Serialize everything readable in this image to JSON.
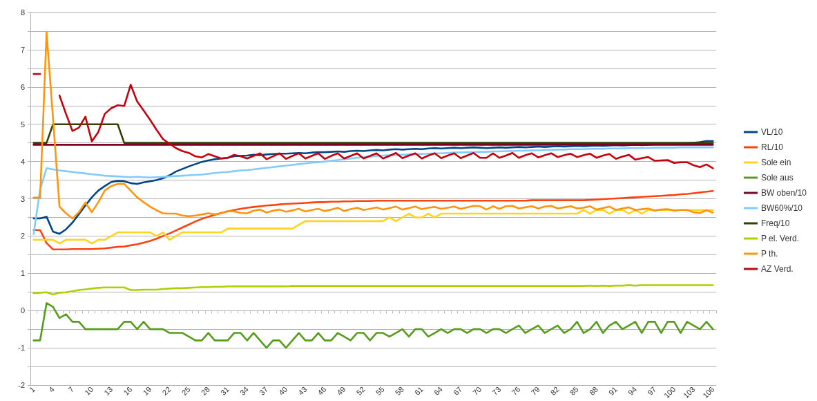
{
  "chart_data": {
    "type": "line",
    "categories": [
      "1",
      null,
      null,
      "4",
      null,
      null,
      "7",
      null,
      null,
      "10",
      null,
      null,
      "13",
      null,
      null,
      "16",
      null,
      null,
      "19",
      null,
      null,
      "22",
      null,
      null,
      "25",
      null,
      null,
      "28",
      null,
      null,
      "31",
      null,
      null,
      "34",
      null,
      null,
      "37",
      null,
      null,
      "40",
      null,
      null,
      "43",
      null,
      null,
      "46",
      null,
      null,
      "49",
      null,
      null,
      "52",
      null,
      null,
      "55",
      null,
      null,
      "58",
      null,
      null,
      "61",
      null,
      null,
      "64",
      null,
      null,
      "67",
      null,
      null,
      "70",
      null,
      null,
      "73",
      null,
      null,
      "76",
      null,
      null,
      "79",
      null,
      null,
      "82",
      null,
      null,
      "85",
      null,
      null,
      "88",
      null,
      null,
      "91",
      null,
      null,
      "94",
      null,
      null,
      "97",
      null,
      null,
      "100",
      null,
      null,
      "103",
      null,
      null,
      "106"
    ],
    "ylim": [
      -2,
      8
    ],
    "yticks": [
      -2,
      {
        "value": -1.5,
        "label": null
      },
      -1,
      {
        "value": -0.5,
        "label": null
      },
      0,
      {
        "value": 0.5,
        "label": null
      },
      1,
      {
        "value": 1.5,
        "label": null
      },
      2,
      {
        "value": 2.5,
        "label": null
      },
      3,
      {
        "value": 3.5,
        "label": null
      },
      4,
      {
        "value": 4.5,
        "label": null
      },
      5,
      {
        "value": 5.5,
        "label": null
      },
      6,
      {
        "value": 6.5,
        "label": null
      },
      7,
      {
        "value": 7.5,
        "label": null
      },
      8
    ],
    "grid": "y",
    "legend": "right",
    "marker": "none",
    "line_style": "solid",
    "series": [
      {
        "name": "VL/10",
        "color": "#004586",
        "values": [
          2.47,
          2.47,
          2.52,
          2.12,
          2.06,
          2.18,
          2.36,
          2.59,
          2.82,
          3.04,
          3.22,
          3.34,
          3.45,
          3.48,
          3.47,
          3.42,
          3.4,
          3.44,
          3.47,
          3.5,
          3.55,
          3.63,
          3.73,
          3.8,
          3.87,
          3.93,
          3.99,
          4.03,
          4.06,
          4.08,
          4.1,
          4.14,
          4.15,
          4.16,
          4.18,
          4.17,
          4.19,
          4.2,
          4.21,
          4.21,
          4.22,
          4.23,
          4.22,
          4.24,
          4.25,
          4.25,
          4.26,
          4.27,
          4.26,
          4.28,
          4.29,
          4.28,
          4.3,
          4.31,
          4.3,
          4.32,
          4.33,
          4.32,
          4.33,
          4.34,
          4.33,
          4.35,
          4.36,
          4.35,
          4.36,
          4.37,
          4.36,
          4.37,
          4.38,
          4.37,
          4.36,
          4.37,
          4.38,
          4.37,
          4.38,
          4.39,
          4.38,
          4.39,
          4.4,
          4.39,
          4.4,
          4.41,
          4.4,
          4.41,
          4.42,
          4.41,
          4.42,
          4.43,
          4.42,
          4.43,
          4.44,
          4.43,
          4.44,
          4.45,
          4.44,
          4.45,
          4.46,
          4.46,
          4.47,
          4.47,
          4.48,
          4.49,
          4.5,
          4.52,
          4.55,
          4.55
        ]
      },
      {
        "name": "RL/10",
        "color": "#ff420e",
        "values": [
          2.16,
          2.16,
          1.81,
          1.64,
          1.64,
          1.64,
          1.65,
          1.65,
          1.65,
          1.65,
          1.66,
          1.67,
          1.69,
          1.71,
          1.72,
          1.75,
          1.78,
          1.82,
          1.87,
          1.93,
          2.0,
          2.07,
          2.15,
          2.23,
          2.31,
          2.39,
          2.46,
          2.52,
          2.57,
          2.62,
          2.66,
          2.7,
          2.73,
          2.76,
          2.78,
          2.8,
          2.82,
          2.83,
          2.85,
          2.86,
          2.87,
          2.88,
          2.89,
          2.9,
          2.91,
          2.91,
          2.92,
          2.92,
          2.93,
          2.93,
          2.94,
          2.94,
          2.94,
          2.95,
          2.95,
          2.95,
          2.95,
          2.95,
          2.95,
          2.95,
          2.95,
          2.95,
          2.95,
          2.95,
          2.95,
          2.95,
          2.95,
          2.95,
          2.95,
          2.95,
          2.95,
          2.95,
          2.95,
          2.95,
          2.95,
          2.95,
          2.95,
          2.96,
          2.96,
          2.96,
          2.96,
          2.96,
          2.96,
          2.96,
          2.96,
          2.96,
          2.97,
          2.98,
          2.99,
          3.0,
          3.01,
          3.02,
          3.03,
          3.04,
          3.05,
          3.06,
          3.07,
          3.08,
          3.09,
          3.1,
          3.12,
          3.13,
          3.15,
          3.17,
          3.19,
          3.21
        ]
      },
      {
        "name": "Sole ein",
        "color": "#ffd320",
        "values": [
          1.9,
          1.9,
          1.9,
          1.9,
          1.8,
          1.9,
          1.9,
          1.9,
          1.9,
          1.8,
          1.9,
          1.9,
          2.0,
          2.1,
          2.1,
          2.1,
          2.1,
          2.1,
          2.1,
          2.0,
          2.1,
          1.9,
          2.0,
          2.1,
          2.1,
          2.1,
          2.1,
          2.1,
          2.1,
          2.1,
          2.2,
          2.2,
          2.2,
          2.2,
          2.2,
          2.2,
          2.2,
          2.2,
          2.2,
          2.2,
          2.2,
          2.3,
          2.4,
          2.4,
          2.4,
          2.4,
          2.4,
          2.4,
          2.4,
          2.4,
          2.4,
          2.4,
          2.4,
          2.4,
          2.4,
          2.5,
          2.4,
          2.5,
          2.6,
          2.5,
          2.5,
          2.6,
          2.5,
          2.6,
          2.6,
          2.6,
          2.6,
          2.6,
          2.6,
          2.6,
          2.6,
          2.6,
          2.6,
          2.6,
          2.6,
          2.6,
          2.6,
          2.6,
          2.6,
          2.6,
          2.6,
          2.6,
          2.6,
          2.6,
          2.6,
          2.7,
          2.6,
          2.7,
          2.7,
          2.6,
          2.7,
          2.7,
          2.6,
          2.7,
          2.6,
          2.7,
          2.7,
          2.7,
          2.7,
          2.7,
          2.7,
          2.7,
          2.7,
          2.7,
          2.7,
          2.7
        ]
      },
      {
        "name": "Sole aus",
        "color": "#579d1c",
        "values": [
          -0.8,
          -0.8,
          0.2,
          0.1,
          -0.2,
          -0.1,
          -0.3,
          -0.3,
          -0.5,
          -0.5,
          -0.5,
          -0.5,
          -0.5,
          -0.5,
          -0.3,
          -0.3,
          -0.5,
          -0.3,
          -0.5,
          -0.5,
          -0.5,
          -0.6,
          -0.6,
          -0.6,
          -0.7,
          -0.8,
          -0.8,
          -0.6,
          -0.8,
          -0.8,
          -0.8,
          -0.6,
          -0.6,
          -0.8,
          -0.6,
          -0.8,
          -1.0,
          -0.8,
          -0.8,
          -1.0,
          -0.8,
          -0.6,
          -0.8,
          -0.8,
          -0.6,
          -0.8,
          -0.8,
          -0.6,
          -0.7,
          -0.8,
          -0.6,
          -0.6,
          -0.8,
          -0.6,
          -0.6,
          -0.7,
          -0.6,
          -0.5,
          -0.7,
          -0.5,
          -0.5,
          -0.7,
          -0.6,
          -0.5,
          -0.6,
          -0.5,
          -0.5,
          -0.6,
          -0.5,
          -0.5,
          -0.6,
          -0.5,
          -0.5,
          -0.6,
          -0.5,
          -0.4,
          -0.6,
          -0.5,
          -0.4,
          -0.6,
          -0.5,
          -0.4,
          -0.6,
          -0.5,
          -0.3,
          -0.6,
          -0.5,
          -0.3,
          -0.6,
          -0.4,
          -0.3,
          -0.5,
          -0.4,
          -0.3,
          -0.6,
          -0.3,
          -0.3,
          -0.6,
          -0.3,
          -0.3,
          -0.6,
          -0.3,
          -0.4,
          -0.5,
          -0.3,
          -0.5
        ]
      },
      {
        "name": "BW oben/10",
        "color": "#7e0021",
        "values": [
          4.45,
          4.45,
          4.45,
          4.45,
          4.45,
          4.45,
          4.45,
          4.45,
          4.45,
          4.45,
          4.45,
          4.45,
          4.45,
          4.45,
          4.45,
          4.45,
          4.45,
          4.45,
          4.45,
          4.45,
          4.45,
          4.45,
          4.45,
          4.45,
          4.45,
          4.45,
          4.45,
          4.45,
          4.45,
          4.45,
          4.45,
          4.45,
          4.45,
          4.45,
          4.45,
          4.45,
          4.45,
          4.45,
          4.45,
          4.45,
          4.45,
          4.45,
          4.45,
          4.45,
          4.45,
          4.45,
          4.45,
          4.45,
          4.45,
          4.45,
          4.45,
          4.45,
          4.45,
          4.45,
          4.45,
          4.45,
          4.45,
          4.45,
          4.45,
          4.45,
          4.45,
          4.45,
          4.45,
          4.45,
          4.45,
          4.45,
          4.45,
          4.45,
          4.45,
          4.45,
          4.45,
          4.45,
          4.45,
          4.45,
          4.45,
          4.45,
          4.45,
          4.45,
          4.45,
          4.45,
          4.45,
          4.45,
          4.45,
          4.45,
          4.45,
          4.45,
          4.45,
          4.45,
          4.45,
          4.45,
          4.45,
          4.45,
          4.45,
          4.45,
          4.45,
          4.45,
          4.45,
          4.45,
          4.45,
          4.45,
          4.45,
          4.45,
          4.45,
          4.45,
          4.45,
          4.45
        ]
      },
      {
        "name": "BW60%/10",
        "color": "#83caff",
        "values": [
          2.05,
          3.25,
          3.82,
          3.79,
          3.76,
          3.74,
          3.72,
          3.7,
          3.68,
          3.66,
          3.64,
          3.62,
          3.61,
          3.6,
          3.59,
          3.58,
          3.59,
          3.58,
          3.57,
          3.58,
          3.59,
          3.6,
          3.61,
          3.62,
          3.63,
          3.64,
          3.65,
          3.67,
          3.69,
          3.71,
          3.72,
          3.74,
          3.76,
          3.77,
          3.79,
          3.81,
          3.83,
          3.85,
          3.87,
          3.89,
          3.91,
          3.93,
          3.95,
          3.97,
          3.98,
          4.0,
          4.02,
          4.04,
          4.06,
          4.08,
          4.1,
          4.12,
          4.13,
          4.15,
          4.16,
          4.17,
          4.17,
          4.18,
          4.19,
          4.2,
          4.2,
          4.21,
          4.22,
          4.22,
          4.23,
          4.24,
          4.24,
          4.25,
          4.25,
          4.26,
          4.26,
          4.27,
          4.27,
          4.28,
          4.28,
          4.29,
          4.29,
          4.3,
          4.3,
          4.31,
          4.31,
          4.32,
          4.32,
          4.33,
          4.33,
          4.33,
          4.34,
          4.34,
          4.34,
          4.35,
          4.35,
          4.35,
          4.36,
          4.36,
          4.36,
          4.36,
          4.37,
          4.37,
          4.37,
          4.37,
          4.38,
          4.38,
          4.38,
          4.38,
          4.38,
          4.38
        ]
      },
      {
        "name": "Freq/10",
        "color": "#314004",
        "values": [
          4.5,
          4.5,
          4.5,
          5.0,
          5.0,
          5.0,
          5.0,
          5.0,
          5.0,
          5.0,
          5.0,
          5.0,
          5.0,
          5.0,
          4.5,
          4.5,
          4.5,
          4.5,
          4.5,
          4.5,
          4.5,
          4.5,
          4.5,
          4.5,
          4.5,
          4.5,
          4.5,
          4.5,
          4.5,
          4.5,
          4.5,
          4.5,
          4.5,
          4.5,
          4.5,
          4.5,
          4.5,
          4.5,
          4.5,
          4.5,
          4.5,
          4.5,
          4.5,
          4.5,
          4.5,
          4.5,
          4.5,
          4.5,
          4.5,
          4.5,
          4.5,
          4.5,
          4.5,
          4.5,
          4.5,
          4.5,
          4.5,
          4.5,
          4.5,
          4.5,
          4.5,
          4.5,
          4.5,
          4.5,
          4.5,
          4.5,
          4.5,
          4.5,
          4.5,
          4.5,
          4.5,
          4.5,
          4.5,
          4.5,
          4.5,
          4.5,
          4.5,
          4.5,
          4.5,
          4.5,
          4.5,
          4.5,
          4.5,
          4.5,
          4.5,
          4.5,
          4.5,
          4.5,
          4.5,
          4.5,
          4.5,
          4.5,
          4.5,
          4.5,
          4.5,
          4.5,
          4.5,
          4.5,
          4.5,
          4.5,
          4.5,
          4.5,
          4.5,
          4.5,
          4.5,
          4.5
        ]
      },
      {
        "name": "P el. Verd.",
        "color": "#aecf00",
        "values": [
          0.47,
          0.48,
          0.49,
          0.43,
          0.48,
          0.49,
          0.52,
          0.55,
          0.57,
          0.59,
          0.61,
          0.62,
          0.62,
          0.62,
          0.62,
          0.55,
          0.55,
          0.56,
          0.56,
          0.56,
          0.58,
          0.59,
          0.6,
          0.6,
          0.61,
          0.62,
          0.63,
          0.63,
          0.64,
          0.64,
          0.65,
          0.65,
          0.65,
          0.65,
          0.65,
          0.65,
          0.65,
          0.65,
          0.65,
          0.65,
          0.66,
          0.66,
          0.66,
          0.66,
          0.66,
          0.66,
          0.66,
          0.66,
          0.66,
          0.66,
          0.66,
          0.66,
          0.66,
          0.66,
          0.66,
          0.66,
          0.66,
          0.66,
          0.66,
          0.66,
          0.66,
          0.66,
          0.66,
          0.66,
          0.66,
          0.66,
          0.66,
          0.66,
          0.66,
          0.66,
          0.66,
          0.66,
          0.66,
          0.66,
          0.66,
          0.66,
          0.66,
          0.66,
          0.66,
          0.66,
          0.66,
          0.66,
          0.66,
          0.66,
          0.66,
          0.66,
          0.67,
          0.66,
          0.67,
          0.66,
          0.67,
          0.67,
          0.68,
          0.67,
          0.68,
          0.68,
          0.68,
          0.68,
          0.68,
          0.68,
          0.68,
          0.68,
          0.68,
          0.68,
          0.68,
          0.68
        ]
      },
      {
        "name": "P th.",
        "color": "#ff950e",
        "values": [
          3.03,
          3.03,
          7.47,
          5.15,
          2.79,
          2.61,
          2.47,
          2.64,
          2.9,
          2.64,
          2.91,
          3.22,
          3.34,
          3.4,
          3.4,
          3.22,
          3.04,
          2.91,
          2.79,
          2.69,
          2.61,
          2.6,
          2.6,
          2.55,
          2.53,
          2.55,
          2.58,
          2.61,
          2.58,
          2.61,
          2.67,
          2.66,
          2.62,
          2.61,
          2.68,
          2.71,
          2.63,
          2.68,
          2.71,
          2.65,
          2.69,
          2.73,
          2.66,
          2.7,
          2.73,
          2.67,
          2.71,
          2.76,
          2.67,
          2.72,
          2.76,
          2.7,
          2.73,
          2.77,
          2.71,
          2.75,
          2.79,
          2.71,
          2.75,
          2.79,
          2.72,
          2.76,
          2.78,
          2.73,
          2.76,
          2.79,
          2.73,
          2.77,
          2.81,
          2.8,
          2.71,
          2.8,
          2.73,
          2.8,
          2.81,
          2.74,
          2.77,
          2.8,
          2.74,
          2.79,
          2.81,
          2.74,
          2.77,
          2.8,
          2.74,
          2.76,
          2.8,
          2.71,
          2.75,
          2.79,
          2.7,
          2.74,
          2.77,
          2.7,
          2.72,
          2.74,
          2.68,
          2.71,
          2.72,
          2.68,
          2.7,
          2.7,
          2.64,
          2.62,
          2.69,
          2.63
        ]
      },
      {
        "name": "AZ Verd.",
        "color": "#c5000b",
        "values": [
          6.35,
          6.35,
          null,
          null,
          5.77,
          5.28,
          4.82,
          4.91,
          5.2,
          4.54,
          4.79,
          5.28,
          5.43,
          5.51,
          5.49,
          6.06,
          5.61,
          5.37,
          5.12,
          4.85,
          4.6,
          4.48,
          4.36,
          4.28,
          4.23,
          4.14,
          4.11,
          4.2,
          4.14,
          4.08,
          4.1,
          4.18,
          4.14,
          4.08,
          4.15,
          4.22,
          4.06,
          4.14,
          4.22,
          4.07,
          4.15,
          4.22,
          4.08,
          4.15,
          4.22,
          4.07,
          4.15,
          4.22,
          4.08,
          4.15,
          4.22,
          4.08,
          4.15,
          4.22,
          4.08,
          4.15,
          4.23,
          4.09,
          4.16,
          4.22,
          4.08,
          4.16,
          4.22,
          4.09,
          4.16,
          4.22,
          4.09,
          4.16,
          4.23,
          4.1,
          4.1,
          4.22,
          4.1,
          4.16,
          4.23,
          4.1,
          4.17,
          4.22,
          4.11,
          4.17,
          4.22,
          4.12,
          4.17,
          4.21,
          4.12,
          4.17,
          4.21,
          4.1,
          4.16,
          4.2,
          4.07,
          4.13,
          4.18,
          4.05,
          4.09,
          4.12,
          4.02,
          4.03,
          4.04,
          3.96,
          3.98,
          3.98,
          3.9,
          3.85,
          3.92,
          3.82
        ]
      }
    ]
  }
}
